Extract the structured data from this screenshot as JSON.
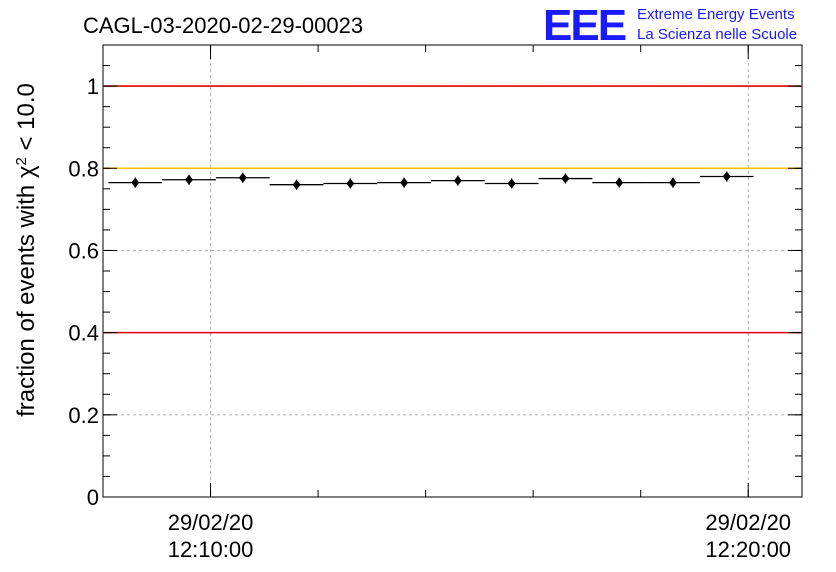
{
  "header": {
    "run_title": "CAGL-03-2020-02-29-00023",
    "logo_letters": "EEE",
    "logo_line1": "Extreme Energy Events",
    "logo_line2": "La Scienza nelle Scuole",
    "logo_color": "#1a1aff"
  },
  "chart_data": {
    "type": "scatter",
    "title": "CAGL-03-2020-02-29-00023",
    "ylabel_prefix": "fraction of events with χ",
    "ylabel_sup": "2",
    "ylabel_suffix": " < 10.0",
    "xlabel": "",
    "x_ticks": [
      {
        "date": "29/02/20",
        "time": "12:10:00"
      },
      {
        "date": "29/02/20",
        "time": "12:20:00"
      }
    ],
    "x_range": [
      "12:08:00",
      "12:21:00"
    ],
    "ylim": [
      0,
      1.1
    ],
    "y_ticks": [
      "0",
      "0.2",
      "0.4",
      "0.6",
      "0.8",
      "1"
    ],
    "grid": true,
    "reference_lines": [
      {
        "y": 1.0,
        "color": "#e00000"
      },
      {
        "y": 0.8,
        "color": "#ffc000"
      },
      {
        "y": 0.4,
        "color": "#e00000"
      }
    ],
    "series": [
      {
        "marker": "diamond",
        "bin_width_minutes": 1,
        "points": [
          {
            "t": "12:08:36",
            "y": 0.765
          },
          {
            "t": "12:09:36",
            "y": 0.772
          },
          {
            "t": "12:10:36",
            "y": 0.777
          },
          {
            "t": "12:11:36",
            "y": 0.76
          },
          {
            "t": "12:12:36",
            "y": 0.763
          },
          {
            "t": "12:13:36",
            "y": 0.765
          },
          {
            "t": "12:14:36",
            "y": 0.77
          },
          {
            "t": "12:15:36",
            "y": 0.763
          },
          {
            "t": "12:16:36",
            "y": 0.775
          },
          {
            "t": "12:17:36",
            "y": 0.765
          },
          {
            "t": "12:18:36",
            "y": 0.765
          },
          {
            "t": "12:19:36",
            "y": 0.78
          }
        ]
      }
    ]
  }
}
